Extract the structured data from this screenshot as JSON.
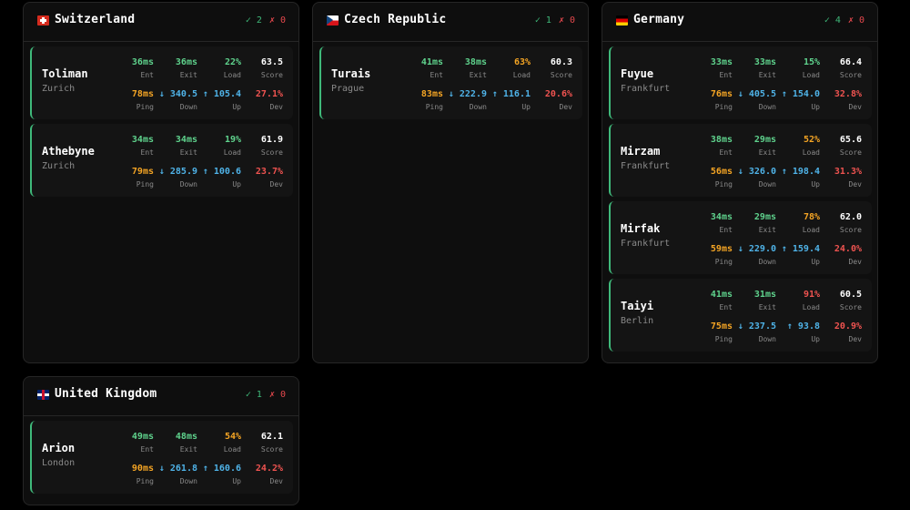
{
  "panels": [
    {
      "flag": "switzerland-flag",
      "country": "Switzerland",
      "ok": "✓ 2",
      "fail": "✗ 0",
      "servers": [
        {
          "name": "Toliman",
          "city": "Zurich",
          "ent": "36ms",
          "exit": "36ms",
          "load": "22%",
          "score": "63.5",
          "ping": "78ms",
          "down": "↓ 340.5",
          "up": "↑ 105.4",
          "dev": "27.1%"
        },
        {
          "name": "Athebyne",
          "city": "Zurich",
          "ent": "34ms",
          "exit": "34ms",
          "load": "19%",
          "score": "61.9",
          "ping": "79ms",
          "down": "↓ 285.9",
          "up": "↑ 100.6",
          "dev": "23.7%"
        }
      ]
    },
    {
      "flag": "czech-flag",
      "country": "Czech Republic",
      "ok": "✓ 1",
      "fail": "✗ 0",
      "servers": [
        {
          "name": "Turais",
          "city": "Prague",
          "ent": "41ms",
          "exit": "38ms",
          "load": "63%",
          "score": "60.3",
          "ping": "83ms",
          "down": "↓ 222.9",
          "up": "↑ 116.1",
          "dev": "20.6%"
        }
      ]
    },
    {
      "flag": "germany-flag",
      "country": "Germany",
      "ok": "✓ 4",
      "fail": "✗ 0",
      "servers": [
        {
          "name": "Fuyue",
          "city": "Frankfurt",
          "ent": "33ms",
          "exit": "33ms",
          "load": "15%",
          "score": "66.4",
          "ping": "76ms",
          "down": "↓ 405.5",
          "up": "↑ 154.0",
          "dev": "32.8%"
        },
        {
          "name": "Mirzam",
          "city": "Frankfurt",
          "ent": "38ms",
          "exit": "29ms",
          "load": "52%",
          "score": "65.6",
          "ping": "56ms",
          "down": "↓ 326.0",
          "up": "↑ 198.4",
          "dev": "31.3%"
        },
        {
          "name": "Mirfak",
          "city": "Frankfurt",
          "ent": "34ms",
          "exit": "29ms",
          "load": "78%",
          "score": "62.0",
          "ping": "59ms",
          "down": "↓ 229.0",
          "up": "↑ 159.4",
          "dev": "24.0%"
        },
        {
          "name": "Taiyi",
          "city": "Berlin",
          "ent": "41ms",
          "exit": "31ms",
          "load": "91%",
          "score": "60.5",
          "ping": "75ms",
          "down": "↓ 237.5",
          "up": "↑ 93.8",
          "dev": "20.9%"
        }
      ]
    },
    {
      "flag": "uk-flag",
      "country": "United Kingdom",
      "ok": "✓ 1",
      "fail": "✗ 0",
      "servers": [
        {
          "name": "Arion",
          "city": "London",
          "ent": "49ms",
          "exit": "48ms",
          "load": "54%",
          "score": "62.1",
          "ping": "90ms",
          "down": "↓ 261.8",
          "up": "↑ 160.6",
          "dev": "24.2%"
        }
      ]
    }
  ],
  "labels": {
    "ent": "Ent",
    "exit": "Exit",
    "load": "Load",
    "score": "Score",
    "ping": "Ping",
    "down": "Down",
    "up": "Up",
    "dev": "Dev"
  },
  "colors": {
    "ok": "#3fb97a",
    "fail": "#e5484d",
    "good": "#5fd38d",
    "warn": "#f5a524",
    "bad": "#ef5350",
    "throughput": "#4fb3e8"
  }
}
